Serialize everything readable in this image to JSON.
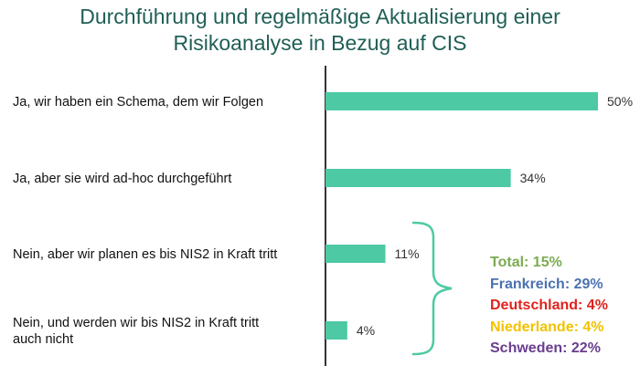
{
  "chart_data": {
    "type": "bar",
    "orientation": "horizontal",
    "title": [
      "Durchführung und regelmäßige Aktualisierung einer",
      "Risikoanalyse in Bezug auf CIS"
    ],
    "categories": [
      [
        "Ja, wir haben ein Schema, dem wir Folgen"
      ],
      [
        "Ja, aber sie wird ad-hoc durchgeführt"
      ],
      [
        "Nein, aber wir planen es bis NIS2 in Kraft tritt"
      ],
      [
        "Nein, und werden wir bis NIS2 in Kraft tritt",
        "auch nicht"
      ]
    ],
    "values": [
      50,
      34,
      11,
      4
    ],
    "value_labels": [
      "50%",
      "34%",
      "11%",
      "4%"
    ],
    "unit": "%",
    "xlim": [
      0,
      50
    ],
    "bar_color": "#4dc9a4",
    "grid": false,
    "breakdown": [
      {
        "text": "Total: 15%",
        "color": "#7bab52"
      },
      {
        "text": "Frankreich: 29%",
        "color": "#4a72b0"
      },
      {
        "text": "Deutschland: 4%",
        "color": "#e0221c"
      },
      {
        "text": "Niederlande: 4%",
        "color": "#f2c200"
      },
      {
        "text": "Schweden: 22%",
        "color": "#6a3d8f"
      }
    ],
    "bracket_color": "#4dc9a4"
  }
}
